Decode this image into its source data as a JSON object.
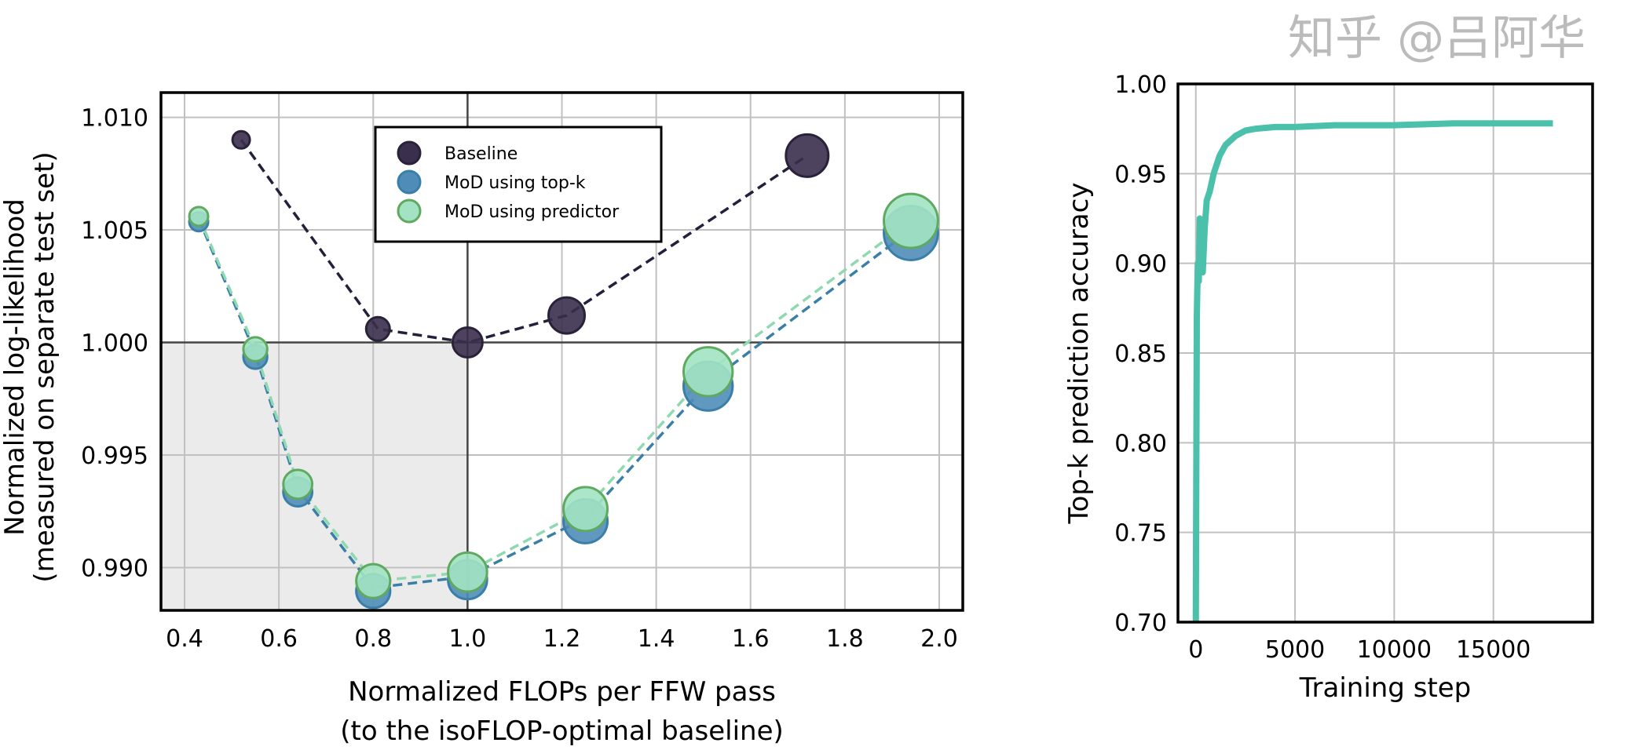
{
  "chart_data": [
    {
      "type": "scatter",
      "xlabel": [
        "Normalized FLOPs per FFW pass",
        "(to the isoFLOP-optimal baseline)"
      ],
      "ylabel": [
        "Normalized log-likelihood",
        "(measured on separate test set)"
      ],
      "xlim": [
        0.35,
        2.05
      ],
      "ylim": [
        0.9881,
        1.0111
      ],
      "xticks": [
        "0.4",
        "0.6",
        "0.8",
        "1.0",
        "1.2",
        "1.4",
        "1.6",
        "1.8",
        "2.0"
      ],
      "yticks": [
        "0.990",
        "0.995",
        "1.000",
        "1.005",
        "1.010"
      ],
      "grid": true,
      "legend_position": "top-center",
      "series": [
        {
          "name": "Baseline",
          "color": "#2e2440",
          "x": [
            0.52,
            0.81,
            1.0,
            1.21,
            1.72
          ],
          "y": [
            1.009,
            1.0006,
            1.0,
            1.0012,
            1.0083
          ]
        },
        {
          "name": "MoD using top-k",
          "color": "#3a7fa8",
          "x": [
            0.43,
            0.55,
            0.64,
            0.8,
            1.0,
            1.25,
            1.51,
            1.94
          ],
          "y": [
            1.0055,
            0.9995,
            0.9935,
            0.9891,
            0.9896,
            0.9922,
            0.9982,
            1.005
          ]
        },
        {
          "name": "MoD using predictor",
          "color": "#8fd9b0",
          "x": [
            0.43,
            0.55,
            0.64,
            0.8,
            1.0,
            1.25,
            1.51,
            1.94
          ],
          "y": [
            1.0056,
            0.9997,
            0.9937,
            0.9894,
            0.9898,
            0.9926,
            0.9987,
            1.0054
          ]
        }
      ]
    },
    {
      "type": "line",
      "xlabel": "Training step",
      "ylabel": "Top-k prediction accuracy",
      "xlim": [
        -900,
        20000
      ],
      "ylim": [
        0.7,
        1.0
      ],
      "xticks": [
        "0",
        "5000",
        "10000",
        "15000"
      ],
      "yticks": [
        "0.70",
        "0.75",
        "0.80",
        "0.85",
        "0.90",
        "0.95",
        "1.00"
      ],
      "grid": true,
      "color": "#4bc0aa",
      "x": [
        0,
        50,
        100,
        150,
        200,
        300,
        350,
        450,
        550,
        700,
        900,
        1200,
        1500,
        2000,
        2500,
        3000,
        4000,
        5000,
        7000,
        10000,
        13000,
        16000,
        18000
      ],
      "y": [
        0.7,
        0.87,
        0.9,
        0.89,
        0.925,
        0.9,
        0.895,
        0.92,
        0.935,
        0.94,
        0.95,
        0.96,
        0.966,
        0.971,
        0.974,
        0.975,
        0.976,
        0.976,
        0.977,
        0.977,
        0.978,
        0.978,
        0.978
      ]
    }
  ],
  "watermark": "知乎 @吕阿华"
}
